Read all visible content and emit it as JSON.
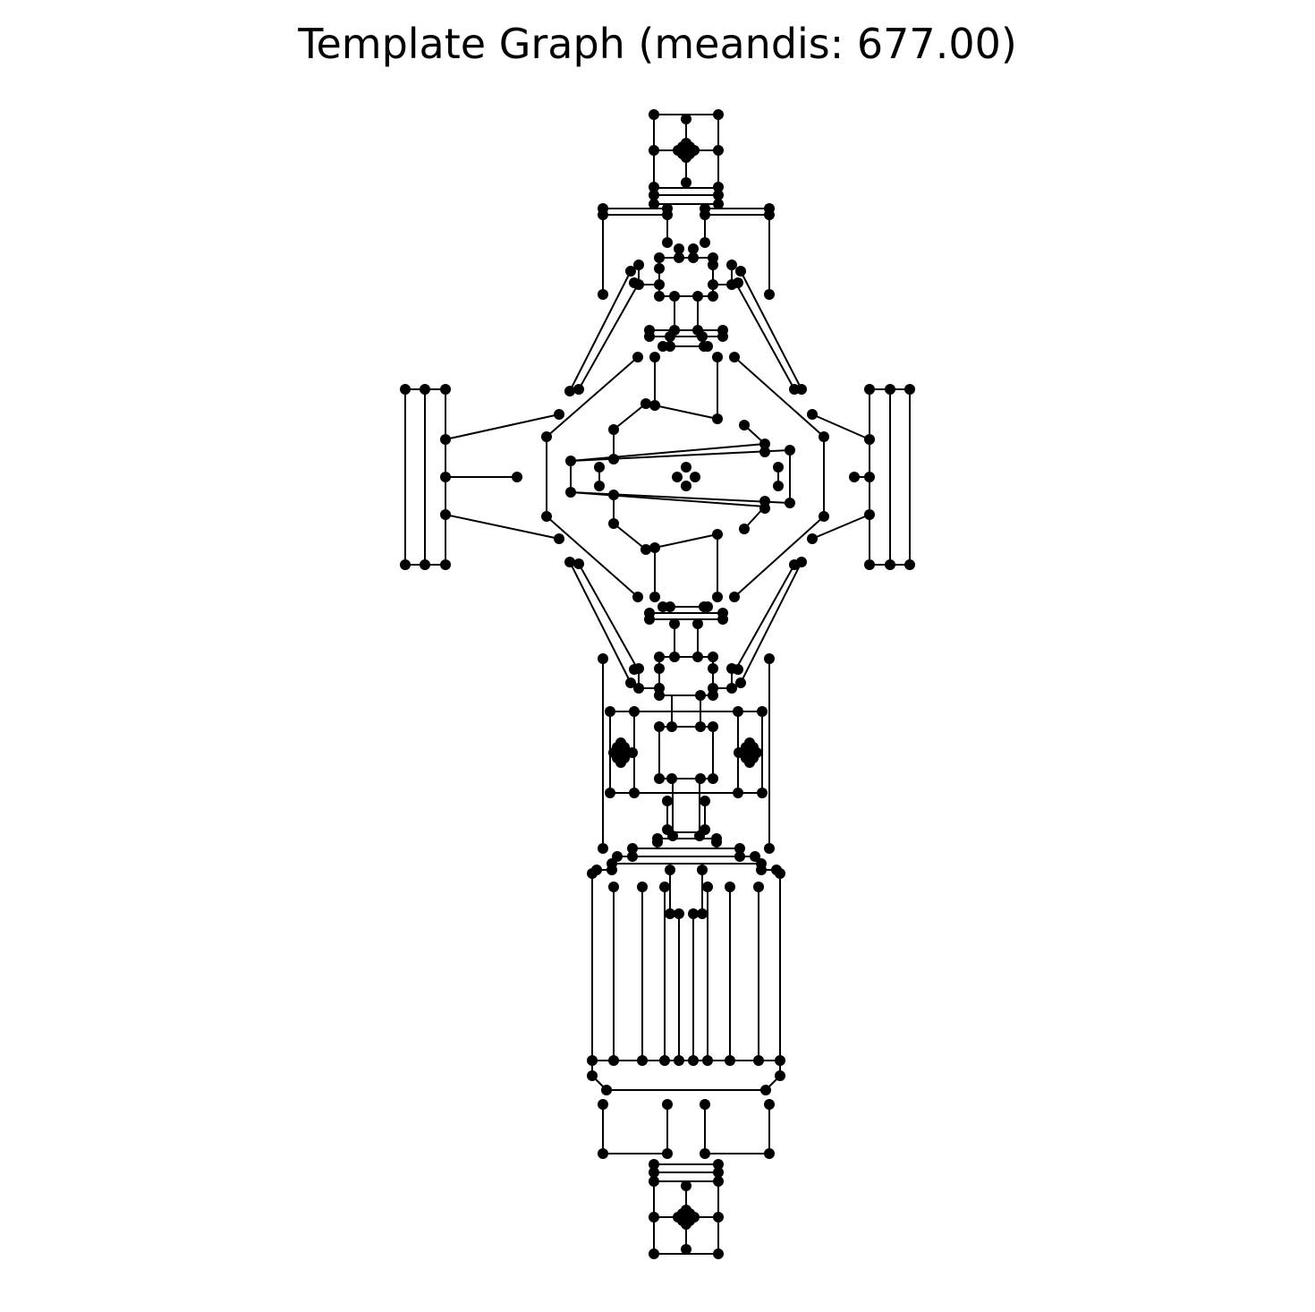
{
  "title": "Template Graph (meandis: 677.00)",
  "style": {
    "node_color": "#000000",
    "edge_color": "#000000",
    "background": "#ffffff"
  }
}
